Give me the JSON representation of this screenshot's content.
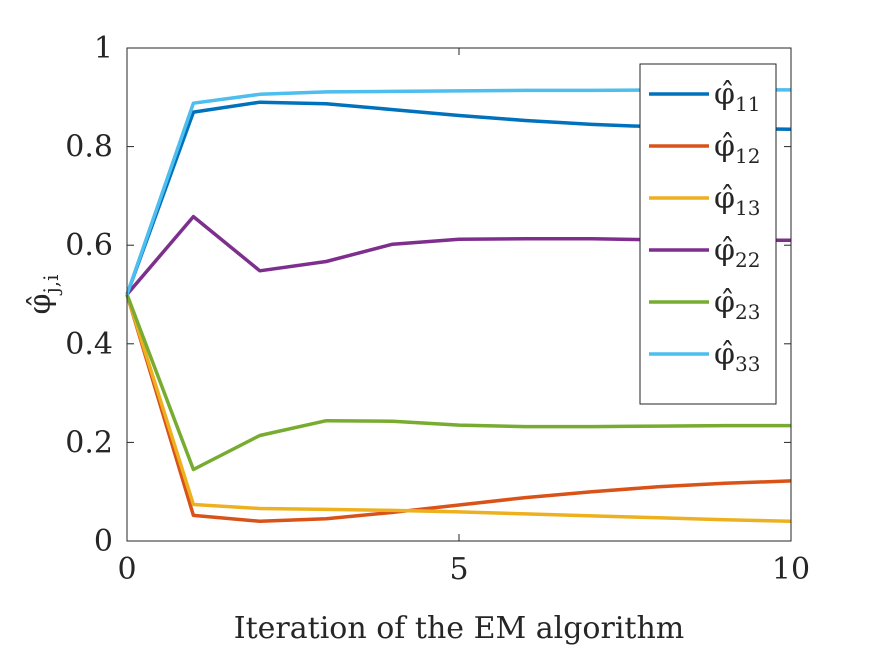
{
  "chart_data": {
    "type": "line",
    "xlabel": "Iteration of the EM algorithm",
    "ylabel": "φ̂_{j,i}",
    "ylabel_main": "φ̂",
    "ylabel_sub": "j,i",
    "xlim": [
      0,
      10
    ],
    "ylim": [
      0,
      1
    ],
    "xticks": [
      0,
      5,
      10
    ],
    "xtick_labels": [
      "0",
      "5",
      "10"
    ],
    "yticks": [
      0,
      0.2,
      0.4,
      0.6,
      0.8,
      1
    ],
    "ytick_labels": [
      "0",
      "0.2",
      "0.4",
      "0.6",
      "0.8",
      "1"
    ],
    "grid": false,
    "legend_position": "top-right",
    "x": [
      0,
      1,
      2,
      3,
      4,
      5,
      6,
      7,
      8,
      9,
      10
    ],
    "series": [
      {
        "name": "φ̂11",
        "symbol": "φ̂",
        "subscript": "11",
        "color": "#0072BD",
        "values": [
          0.5,
          0.87,
          0.89,
          0.887,
          0.875,
          0.863,
          0.853,
          0.845,
          0.84,
          0.837,
          0.835
        ]
      },
      {
        "name": "φ̂12",
        "symbol": "φ̂",
        "subscript": "12",
        "color": "#D95319",
        "values": [
          0.5,
          0.052,
          0.04,
          0.045,
          0.058,
          0.073,
          0.088,
          0.1,
          0.11,
          0.117,
          0.122
        ]
      },
      {
        "name": "φ̂13",
        "symbol": "φ̂",
        "subscript": "13",
        "color": "#EDB120",
        "values": [
          0.5,
          0.074,
          0.066,
          0.064,
          0.062,
          0.059,
          0.055,
          0.051,
          0.047,
          0.043,
          0.04
        ]
      },
      {
        "name": "φ̂22",
        "symbol": "φ̂",
        "subscript": "22",
        "color": "#7E2F8E",
        "values": [
          0.5,
          0.658,
          0.548,
          0.567,
          0.602,
          0.612,
          0.613,
          0.613,
          0.611,
          0.61,
          0.61
        ]
      },
      {
        "name": "φ̂23",
        "symbol": "φ̂",
        "subscript": "23",
        "color": "#77AC30",
        "values": [
          0.5,
          0.145,
          0.214,
          0.244,
          0.243,
          0.235,
          0.232,
          0.232,
          0.233,
          0.234,
          0.234
        ]
      },
      {
        "name": "φ̂33",
        "symbol": "φ̂",
        "subscript": "33",
        "color": "#4DBEEE",
        "values": [
          0.5,
          0.888,
          0.906,
          0.911,
          0.912,
          0.913,
          0.914,
          0.914,
          0.915,
          0.915,
          0.915
        ]
      }
    ]
  }
}
